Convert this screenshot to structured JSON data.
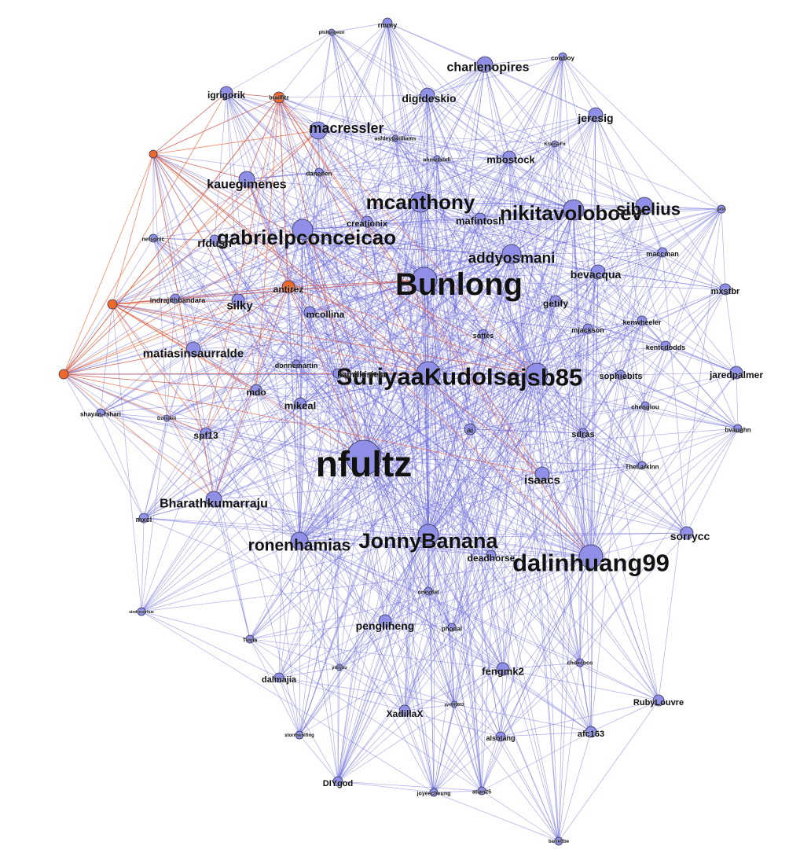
{
  "colors": {
    "background": "#ffffff",
    "node_default": "#8f8fe8",
    "node_highlight": "#ee6a2c",
    "node_stroke": "#333355",
    "edge_default": "#6a6ad8",
    "edge_highlight": "#e8552a",
    "label": "#111111"
  },
  "nodes": [
    {
      "id": "nfultz",
      "label": "nfultz",
      "r": 22,
      "fs": 46,
      "group": "default"
    },
    {
      "id": "Bunlong",
      "label": "Bunlong",
      "r": 16,
      "fs": 40,
      "group": "default"
    },
    {
      "id": "SuriyaaKudoIsc",
      "label": "SuriyaaKudoIsc",
      "r": 15,
      "fs": 31,
      "group": "default"
    },
    {
      "id": "ajsb85",
      "label": "ajsb85",
      "r": 14,
      "fs": 31,
      "group": "default"
    },
    {
      "id": "dalinhuang99",
      "label": "dalinhuang99",
      "r": 15,
      "fs": 31,
      "group": "default"
    },
    {
      "id": "JonnyBanana",
      "label": "JonnyBanana",
      "r": 13,
      "fs": 27,
      "group": "default"
    },
    {
      "id": "gabrielpconceicao",
      "label": "gabrielpconceicao",
      "r": 13,
      "fs": 26,
      "group": "default"
    },
    {
      "id": "mcanthony",
      "label": "mcanthony",
      "r": 13,
      "fs": 26,
      "group": "default"
    },
    {
      "id": "nikitavoloboev",
      "label": "nikitavoloboev",
      "r": 13,
      "fs": 26,
      "group": "default"
    },
    {
      "id": "sibelius",
      "label": "sibelius",
      "r": 11,
      "fs": 22,
      "group": "default"
    },
    {
      "id": "ronenhamias",
      "label": "ronenhamias",
      "r": 11,
      "fs": 21,
      "group": "default"
    },
    {
      "id": "addyosmani",
      "label": "addyosmani",
      "r": 12,
      "fs": 19,
      "group": "default"
    },
    {
      "id": "macressler",
      "label": "macressler",
      "r": 11,
      "fs": 18,
      "group": "default"
    },
    {
      "id": "Bharathkumarraju",
      "label": "Bharathkumarraju",
      "r": 10,
      "fs": 16,
      "group": "default"
    },
    {
      "id": "charlenopires",
      "label": "charlenopires",
      "r": 10,
      "fs": 16,
      "group": "default"
    },
    {
      "id": "kauegimenes",
      "label": "kauegimenes",
      "r": 10,
      "fs": 16,
      "group": "default"
    },
    {
      "id": "matiasinsaurralde",
      "label": "matiasinsaurralde",
      "r": 9,
      "fs": 15,
      "group": "default"
    },
    {
      "id": "isaacs",
      "label": "isaacs",
      "r": 9,
      "fs": 15,
      "group": "default"
    },
    {
      "id": "sorrycc",
      "label": "sorrycc",
      "r": 8,
      "fs": 14,
      "group": "default"
    },
    {
      "id": "silky",
      "label": "silky",
      "r": 8,
      "fs": 15,
      "group": "default"
    },
    {
      "id": "digideskio",
      "label": "digideskio",
      "r": 9,
      "fs": 14,
      "group": "default"
    },
    {
      "id": "jeresig",
      "label": "jeresig",
      "r": 9,
      "fs": 14,
      "group": "default"
    },
    {
      "id": "rfdush",
      "label": "rfdush",
      "r": 6,
      "fs": 14,
      "group": "default"
    },
    {
      "id": "bevacqua",
      "label": "bevacqua",
      "r": 9,
      "fs": 14,
      "group": "default"
    },
    {
      "id": "pengliheng",
      "label": "pengliheng",
      "r": 8,
      "fs": 14,
      "group": "default"
    },
    {
      "id": "fengmk2",
      "label": "fengmk2",
      "r": 8,
      "fs": 13,
      "group": "default"
    },
    {
      "id": "mbostock",
      "label": "mbostock",
      "r": 8,
      "fs": 13,
      "group": "default"
    },
    {
      "id": "mafintosh",
      "label": "mafintosh",
      "r": 7,
      "fs": 13,
      "group": "default"
    },
    {
      "id": "mcollina",
      "label": "mcollina",
      "r": 7,
      "fs": 12,
      "group": "default"
    },
    {
      "id": "mikeal",
      "label": "mikeal",
      "r": 7,
      "fs": 13,
      "group": "default"
    },
    {
      "id": "antirez",
      "label": "antirez",
      "r": 8,
      "fs": 12,
      "group": "highlight"
    },
    {
      "id": "igrigorik",
      "label": "igrigorik",
      "r": 8,
      "fs": 12,
      "group": "default"
    },
    {
      "id": "jaredpalmer",
      "label": "jaredpalmer",
      "r": 8,
      "fs": 12,
      "group": "default"
    },
    {
      "id": "XadillaX",
      "label": "XadillaX",
      "r": 7,
      "fs": 12,
      "group": "default"
    },
    {
      "id": "creationix",
      "label": "creationix",
      "r": 7,
      "fs": 11,
      "group": "default"
    },
    {
      "id": "mdo",
      "label": "mdo",
      "r": 7,
      "fs": 12,
      "group": "default"
    },
    {
      "id": "spf13",
      "label": "spf13",
      "r": 7,
      "fs": 12,
      "group": "default"
    },
    {
      "id": "getify",
      "label": "getify",
      "r": 7,
      "fs": 12,
      "group": "default"
    },
    {
      "id": "mxstbr",
      "label": "mxstbr",
      "r": 7,
      "fs": 11,
      "group": "default"
    },
    {
      "id": "RubyLouvre",
      "label": "RubyLouvre",
      "r": 7,
      "fs": 11,
      "group": "default"
    },
    {
      "id": "afc163",
      "label": "afc163",
      "r": 7,
      "fs": 11,
      "group": "default"
    },
    {
      "id": "dalmajia",
      "label": "dalmajia",
      "r": 6,
      "fs": 11,
      "group": "default"
    },
    {
      "id": "deadhorse",
      "label": "deadhorse",
      "r": 6,
      "fs": 12,
      "group": "default"
    },
    {
      "id": "sdras",
      "label": "sdras",
      "r": 6,
      "fs": 11,
      "group": "default"
    },
    {
      "id": "DIYgod",
      "label": "DIYgod",
      "r": 6,
      "fs": 11,
      "group": "default"
    },
    {
      "id": "sophiebits",
      "label": "sophiebits",
      "r": 6,
      "fs": 11,
      "group": "default"
    },
    {
      "id": "kamilkisiela",
      "label": "kamilkisiela",
      "r": 6,
      "fs": 11,
      "group": "default"
    },
    {
      "id": "indrajithbandara",
      "label": "indrajithbandara",
      "r": 6,
      "fs": 9,
      "group": "default"
    },
    {
      "id": "kentcdodds",
      "label": "kentcdodds",
      "r": 6,
      "fs": 9,
      "group": "default"
    },
    {
      "id": "kenwheeler",
      "label": "kenwheeler",
      "r": 6,
      "fs": 9,
      "group": "default"
    },
    {
      "id": "mjackson",
      "label": "mjackson",
      "r": 6,
      "fs": 9,
      "group": "default"
    },
    {
      "id": "maccman",
      "label": "maccman",
      "r": 6,
      "fs": 9,
      "group": "default"
    },
    {
      "id": "sofffes",
      "label": "soffes",
      "r": 6,
      "fs": 9,
      "group": "default"
    },
    {
      "id": "donnemartin",
      "label": "donnemartin",
      "r": 5,
      "fs": 9,
      "group": "default"
    },
    {
      "id": "chenglou",
      "label": "chenglou",
      "r": 5,
      "fs": 8,
      "group": "default"
    },
    {
      "id": "TheLarkInn",
      "label": "TheLarkInn",
      "r": 5,
      "fs": 8,
      "group": "default"
    },
    {
      "id": "bvaughn",
      "label": "bvaughn",
      "r": 5,
      "fs": 8,
      "group": "default"
    },
    {
      "id": "cowboy",
      "label": "cowboy",
      "r": 5,
      "fs": 8,
      "group": "default"
    },
    {
      "id": "rmmy",
      "label": "rmmy",
      "r": 6,
      "fs": 9,
      "group": "default"
    },
    {
      "id": "phiturgeon",
      "label": "philturgeon",
      "r": 4,
      "fs": 6,
      "group": "default"
    },
    {
      "id": "ashleygwilliams",
      "label": "ashleygwilliams",
      "r": 4,
      "fs": 7,
      "group": "default"
    },
    {
      "id": "ahmetabdi",
      "label": "ahmetabdi",
      "r": 4,
      "fs": 7,
      "group": "default"
    },
    {
      "id": "daneden",
      "label": "daneden",
      "r": 5,
      "fs": 8,
      "group": "default"
    },
    {
      "id": "KrauseFx",
      "label": "KrauseFx",
      "r": 4,
      "fs": 6,
      "group": "default"
    },
    {
      "id": "prtn",
      "label": "prtn",
      "r": 5,
      "fs": 6,
      "group": "default"
    },
    {
      "id": "netsonic",
      "label": "netsonic",
      "r": 5,
      "fs": 7,
      "group": "default"
    },
    {
      "id": "shayan",
      "label": "shayan-fshari",
      "r": 5,
      "fs": 8,
      "group": "default"
    },
    {
      "id": "Dzeiskill",
      "label": "Dzeiskill",
      "r": 4,
      "fs": 6,
      "group": "default"
    },
    {
      "id": "ai",
      "label": "ai",
      "r": 7,
      "fs": 10,
      "group": "default"
    },
    {
      "id": "mxcl",
      "label": "mxcl",
      "r": 6,
      "fs": 9,
      "group": "default"
    },
    {
      "id": "sindresorhus",
      "label": "sindresorhus",
      "r": 5,
      "fs": 5,
      "group": "default"
    },
    {
      "id": "Tinna",
      "label": "Tinna",
      "r": 5,
      "fs": 7,
      "group": "default"
    },
    {
      "id": "yoryxu",
      "label": "yoryxu",
      "r": 4,
      "fs": 6,
      "group": "default"
    },
    {
      "id": "onevdat",
      "label": "onevdat",
      "r": 5,
      "fs": 7,
      "group": "default"
    },
    {
      "id": "phodal",
      "label": "phodal",
      "r": 5,
      "fs": 8,
      "group": "default"
    },
    {
      "id": "chokcoco",
      "label": "chokcoco",
      "r": 5,
      "fs": 7,
      "group": "default"
    },
    {
      "id": "yyx990803",
      "label": "yyx990803",
      "r": 4,
      "fs": 5,
      "group": "default"
    },
    {
      "id": "stormwolf",
      "label": "stormwolfing",
      "r": 5,
      "fs": 6,
      "group": "default"
    },
    {
      "id": "alsotang",
      "label": "alsotang",
      "r": 6,
      "fs": 9,
      "group": "default"
    },
    {
      "id": "joyeecheung",
      "label": "joyeecheung",
      "r": 5,
      "fs": 7,
      "group": "default"
    },
    {
      "id": "atian25",
      "label": "atian25",
      "r": 5,
      "fs": 7,
      "group": "default"
    },
    {
      "id": "barrettbe",
      "label": "barrettbe",
      "r": 5,
      "fs": 6,
      "group": "default"
    },
    {
      "id": "tradfitz",
      "label": "bradfitz",
      "r": 7,
      "fs": 7,
      "group": "highlight"
    },
    {
      "id": "orA",
      "label": "",
      "r": 5,
      "fs": 5,
      "group": "highlight"
    },
    {
      "id": "orB",
      "label": "",
      "r": 6,
      "fs": 5,
      "group": "highlight"
    },
    {
      "id": "orC",
      "label": "",
      "r": 6,
      "fs": 5,
      "group": "highlight"
    }
  ]
}
